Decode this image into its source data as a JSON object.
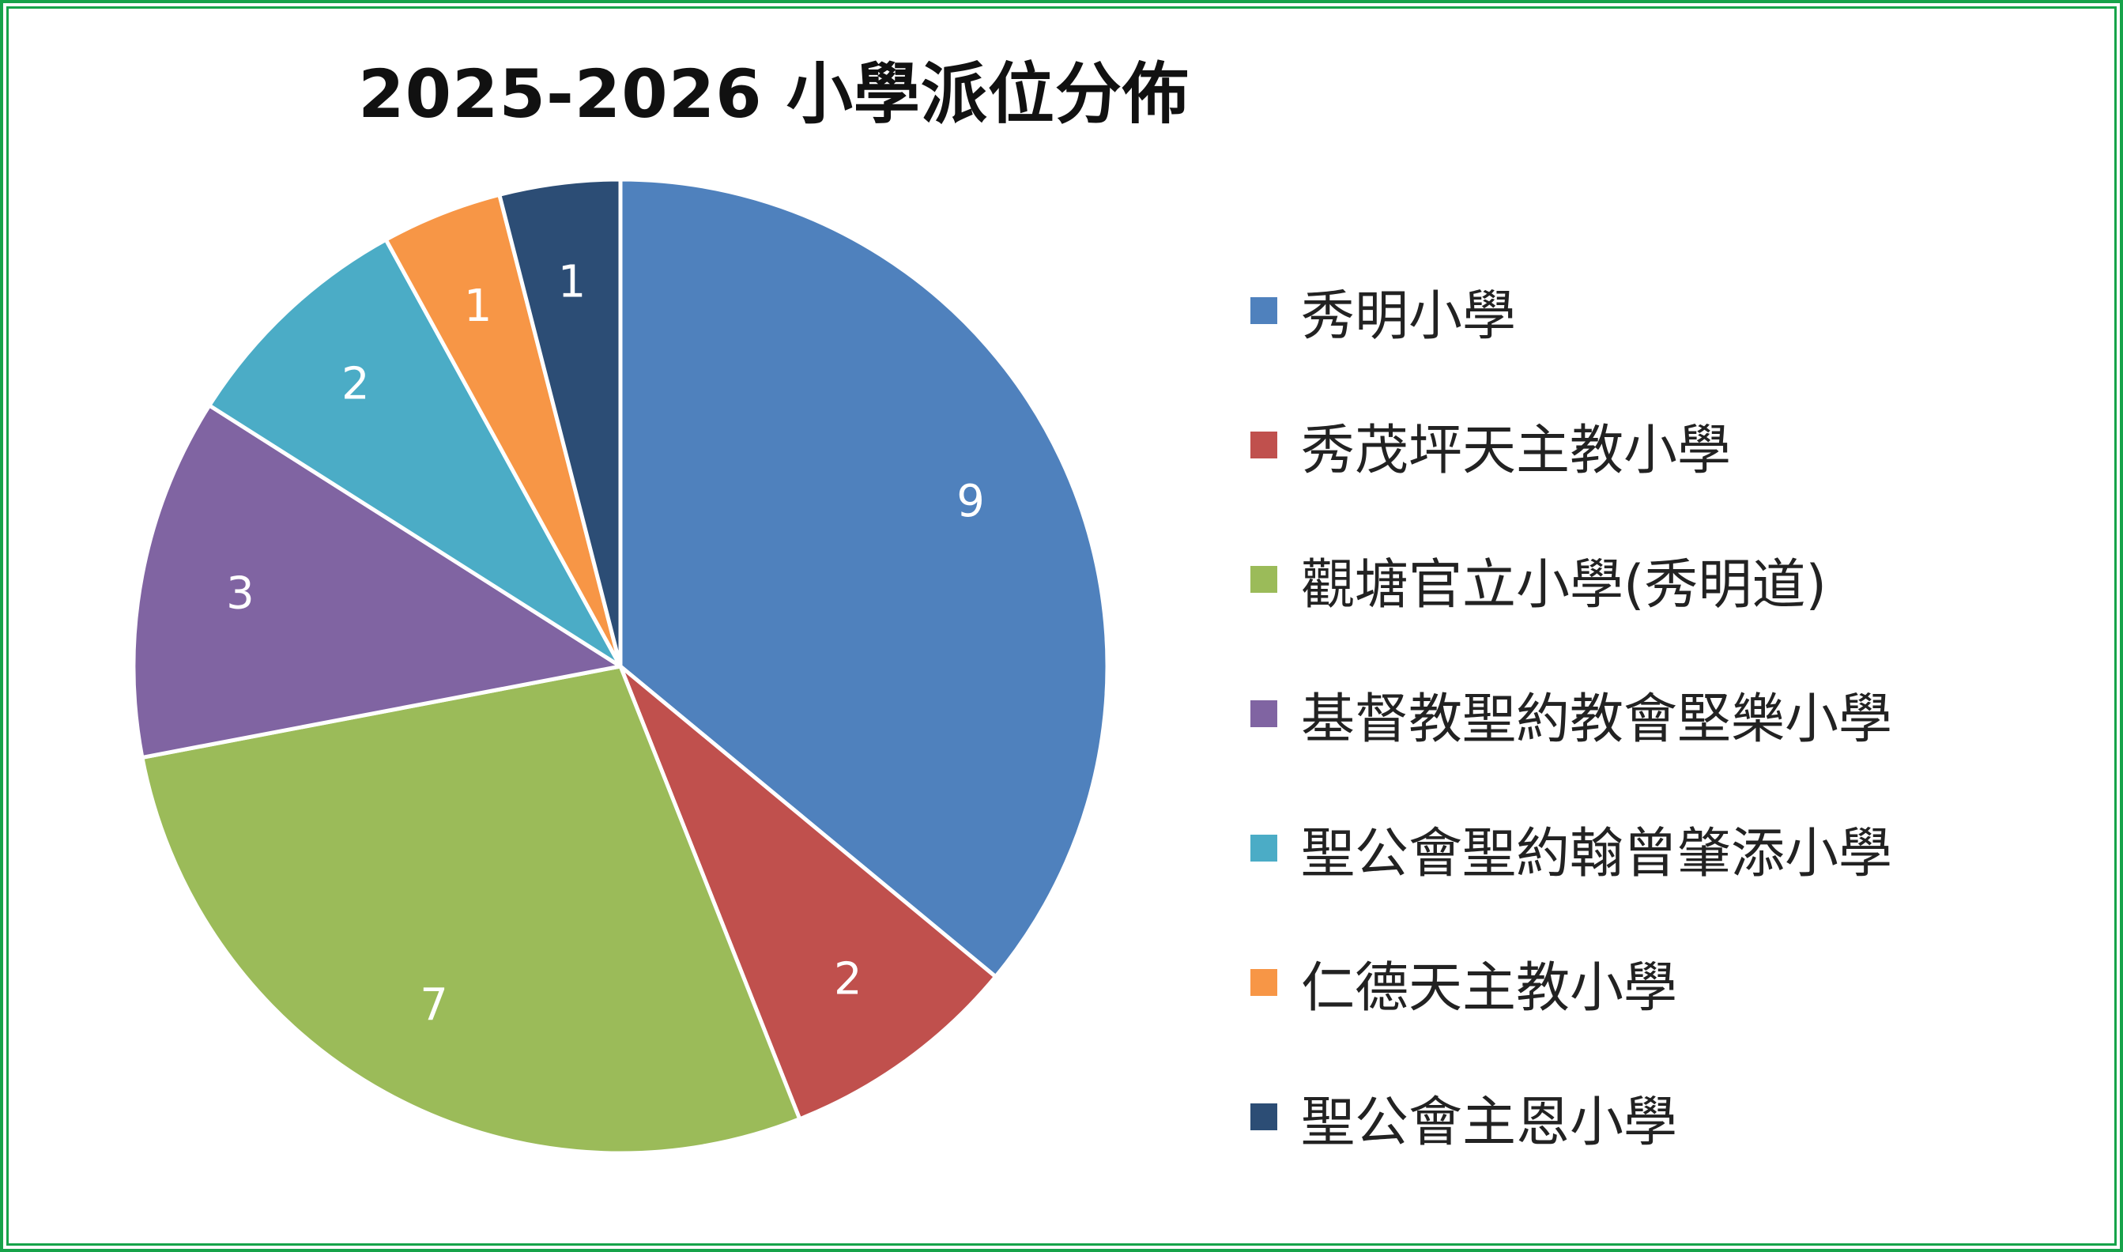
{
  "chart_data": {
    "type": "pie",
    "title": "2025-2026 小學派位分佈",
    "categories": [
      "秀明小學",
      "秀茂坪天主教小學",
      "觀塘官立小學(秀明道)",
      "基督教聖約教會堅樂小學",
      "聖公會聖約翰曾肇添小學",
      "仁德天主教小學",
      "聖公會主恩小學"
    ],
    "values": [
      9,
      2,
      7,
      3,
      2,
      1,
      1
    ],
    "colors": [
      "#4f81bd",
      "#c0504d",
      "#9bbb59",
      "#8064a2",
      "#4bacc6",
      "#f79646",
      "#2c4d75"
    ],
    "data_labels": [
      "9",
      "2",
      "7",
      "3",
      "2",
      "1",
      "1"
    ],
    "start_angle": "12 o'clock",
    "direction": "clockwise",
    "legend_position": "right"
  },
  "frame_color": "#17a34a"
}
